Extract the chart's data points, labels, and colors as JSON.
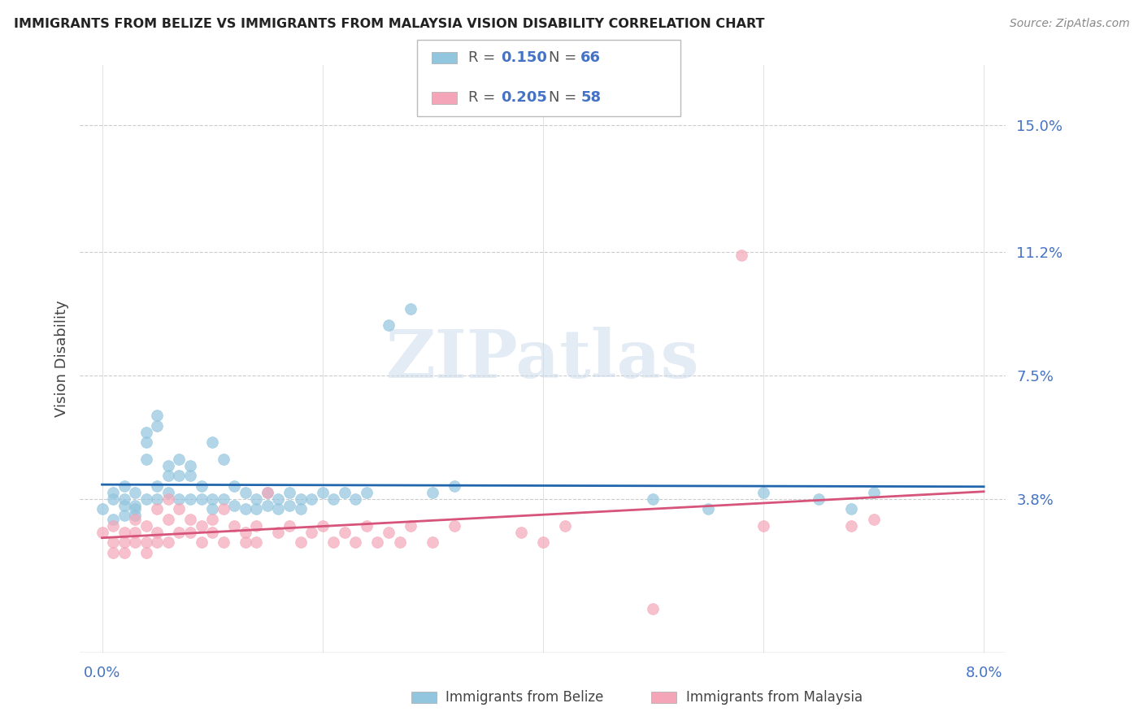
{
  "title": "IMMIGRANTS FROM BELIZE VS IMMIGRANTS FROM MALAYSIA VISION DISABILITY CORRELATION CHART",
  "source": "Source: ZipAtlas.com",
  "ylabel": "Vision Disability",
  "ytick_labels": [
    "15.0%",
    "11.2%",
    "7.5%",
    "3.8%"
  ],
  "ytick_values": [
    0.15,
    0.112,
    0.075,
    0.038
  ],
  "xlim": [
    0.0,
    0.08
  ],
  "ylim": [
    0.0,
    0.16
  ],
  "belize_color": "#92c5de",
  "malaysia_color": "#f4a6b8",
  "belize_line_color": "#2166ac",
  "malaysia_line_color": "#d6537a",
  "legend_belize_R": "0.150",
  "legend_belize_N": "66",
  "legend_malaysia_R": "0.205",
  "legend_malaysia_N": "58",
  "watermark": "ZIPatlas",
  "belize_x": [
    0.0,
    0.001,
    0.001,
    0.001,
    0.002,
    0.002,
    0.002,
    0.002,
    0.003,
    0.003,
    0.003,
    0.003,
    0.004,
    0.004,
    0.004,
    0.004,
    0.005,
    0.005,
    0.005,
    0.005,
    0.006,
    0.006,
    0.006,
    0.007,
    0.007,
    0.007,
    0.008,
    0.008,
    0.008,
    0.009,
    0.009,
    0.01,
    0.01,
    0.01,
    0.011,
    0.011,
    0.012,
    0.012,
    0.013,
    0.013,
    0.014,
    0.014,
    0.015,
    0.015,
    0.016,
    0.016,
    0.017,
    0.017,
    0.018,
    0.018,
    0.019,
    0.02,
    0.021,
    0.022,
    0.023,
    0.024,
    0.026,
    0.028,
    0.03,
    0.032,
    0.05,
    0.055,
    0.06,
    0.065,
    0.068,
    0.07
  ],
  "belize_y": [
    0.035,
    0.038,
    0.04,
    0.032,
    0.036,
    0.038,
    0.033,
    0.042,
    0.04,
    0.036,
    0.035,
    0.033,
    0.055,
    0.058,
    0.05,
    0.038,
    0.06,
    0.063,
    0.042,
    0.038,
    0.048,
    0.045,
    0.04,
    0.05,
    0.045,
    0.038,
    0.048,
    0.045,
    0.038,
    0.042,
    0.038,
    0.055,
    0.038,
    0.035,
    0.05,
    0.038,
    0.042,
    0.036,
    0.04,
    0.035,
    0.038,
    0.035,
    0.04,
    0.036,
    0.038,
    0.035,
    0.04,
    0.036,
    0.038,
    0.035,
    0.038,
    0.04,
    0.038,
    0.04,
    0.038,
    0.04,
    0.09,
    0.095,
    0.04,
    0.042,
    0.038,
    0.035,
    0.04,
    0.038,
    0.035,
    0.04
  ],
  "malaysia_x": [
    0.0,
    0.001,
    0.001,
    0.001,
    0.002,
    0.002,
    0.002,
    0.003,
    0.003,
    0.003,
    0.004,
    0.004,
    0.004,
    0.005,
    0.005,
    0.005,
    0.006,
    0.006,
    0.006,
    0.007,
    0.007,
    0.008,
    0.008,
    0.009,
    0.009,
    0.01,
    0.01,
    0.011,
    0.011,
    0.012,
    0.013,
    0.013,
    0.014,
    0.014,
    0.015,
    0.016,
    0.017,
    0.018,
    0.019,
    0.02,
    0.021,
    0.022,
    0.023,
    0.024,
    0.025,
    0.026,
    0.027,
    0.028,
    0.03,
    0.032,
    0.038,
    0.04,
    0.042,
    0.05,
    0.058,
    0.06,
    0.068,
    0.07
  ],
  "malaysia_y": [
    0.028,
    0.025,
    0.03,
    0.022,
    0.028,
    0.025,
    0.022,
    0.032,
    0.028,
    0.025,
    0.03,
    0.025,
    0.022,
    0.035,
    0.028,
    0.025,
    0.038,
    0.032,
    0.025,
    0.035,
    0.028,
    0.032,
    0.028,
    0.03,
    0.025,
    0.032,
    0.028,
    0.035,
    0.025,
    0.03,
    0.028,
    0.025,
    0.03,
    0.025,
    0.04,
    0.028,
    0.03,
    0.025,
    0.028,
    0.03,
    0.025,
    0.028,
    0.025,
    0.03,
    0.025,
    0.028,
    0.025,
    0.03,
    0.025,
    0.03,
    0.028,
    0.025,
    0.03,
    0.005,
    0.111,
    0.03,
    0.03,
    0.032
  ]
}
